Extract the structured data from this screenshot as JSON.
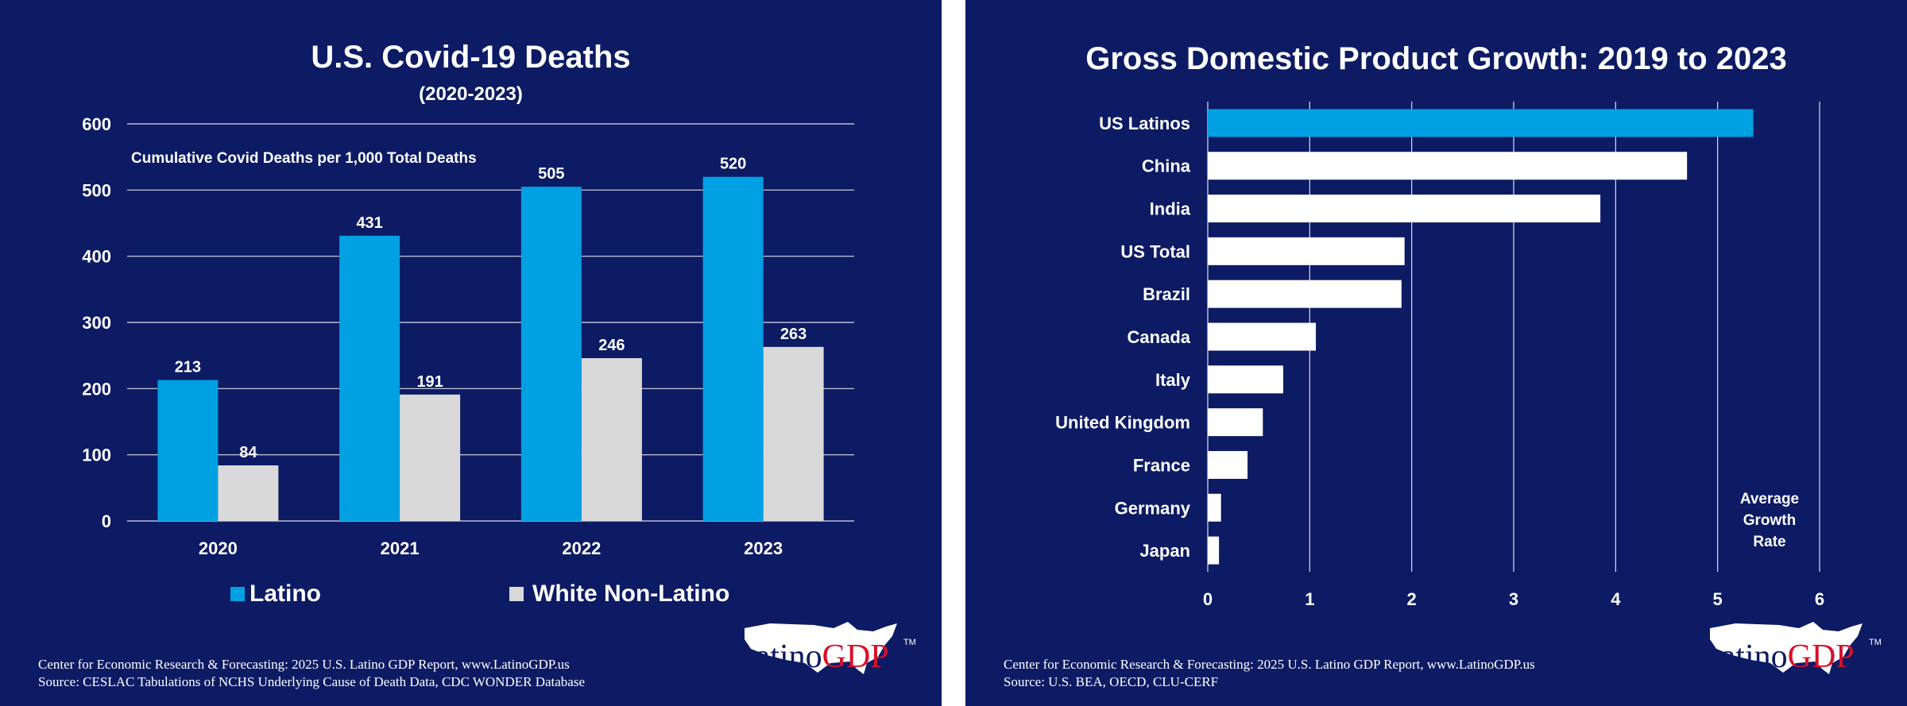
{
  "left": {
    "title": "U.S. Covid-19 Deaths",
    "subtitle": "(2020-2023)",
    "footer_line1": "Center for Economic Research & Forecasting: 2025 U.S. Latino GDP Report, www.LatinoGDP.us",
    "footer_line2": "Source: CESLAC Tabulations of NCHS Underlying Cause of Death Data, CDC WONDER Database",
    "logo": {
      "word1": "Latino",
      "word2": "GDP",
      "tm": "TM"
    }
  },
  "right": {
    "title": "Gross Domestic Product Growth: 2019 to 2023",
    "footer_line1": "Center for Economic Research & Forecasting: 2025 U.S. Latino GDP Report, www.LatinoGDP.us",
    "footer_line2": "Source: U.S. BEA, OECD, CLU-CERF",
    "logo": {
      "word1": "Latino",
      "word2": "GDP",
      "tm": "TM"
    }
  },
  "colors": {
    "background": "#0d1b64",
    "latino": "#00a0e3",
    "white_non_latino": "#d9d9d9",
    "bar_white": "#ffffff",
    "gdp_red": "#d8102a"
  },
  "chart_data": [
    {
      "type": "bar",
      "title": "U.S. Covid-19 Deaths",
      "subtitle": "(2020-2023)",
      "annotation": "Cumulative Covid Deaths per 1,000 Total Deaths",
      "categories": [
        "2020",
        "2021",
        "2022",
        "2023"
      ],
      "series": [
        {
          "name": "Latino",
          "values": [
            213,
            431,
            505,
            520
          ],
          "color": "#00a0e3"
        },
        {
          "name": "White Non-Latino",
          "values": [
            84,
            191,
            246,
            263
          ],
          "color": "#d9d9d9"
        }
      ],
      "ylim": [
        0,
        600
      ],
      "yticks": [
        0,
        100,
        200,
        300,
        400,
        500,
        600
      ],
      "grid": true,
      "legend": "bottom"
    },
    {
      "type": "bar",
      "orientation": "horizontal",
      "title": "Gross Domestic Product Growth: 2019 to 2023",
      "categories": [
        "US Latinos",
        "China",
        "India",
        "US Total",
        "Brazil",
        "Canada",
        "Italy",
        "United Kingdom",
        "France",
        "Germany",
        "Japan"
      ],
      "values": [
        5.35,
        4.7,
        3.85,
        1.93,
        1.9,
        1.06,
        0.74,
        0.54,
        0.39,
        0.13,
        0.11
      ],
      "highlight": "US Latinos",
      "xlim": [
        0,
        6
      ],
      "xticks": [
        0,
        1,
        2,
        3,
        4,
        5,
        6
      ],
      "xlabel": "Average Growth Rate",
      "grid": true
    }
  ]
}
